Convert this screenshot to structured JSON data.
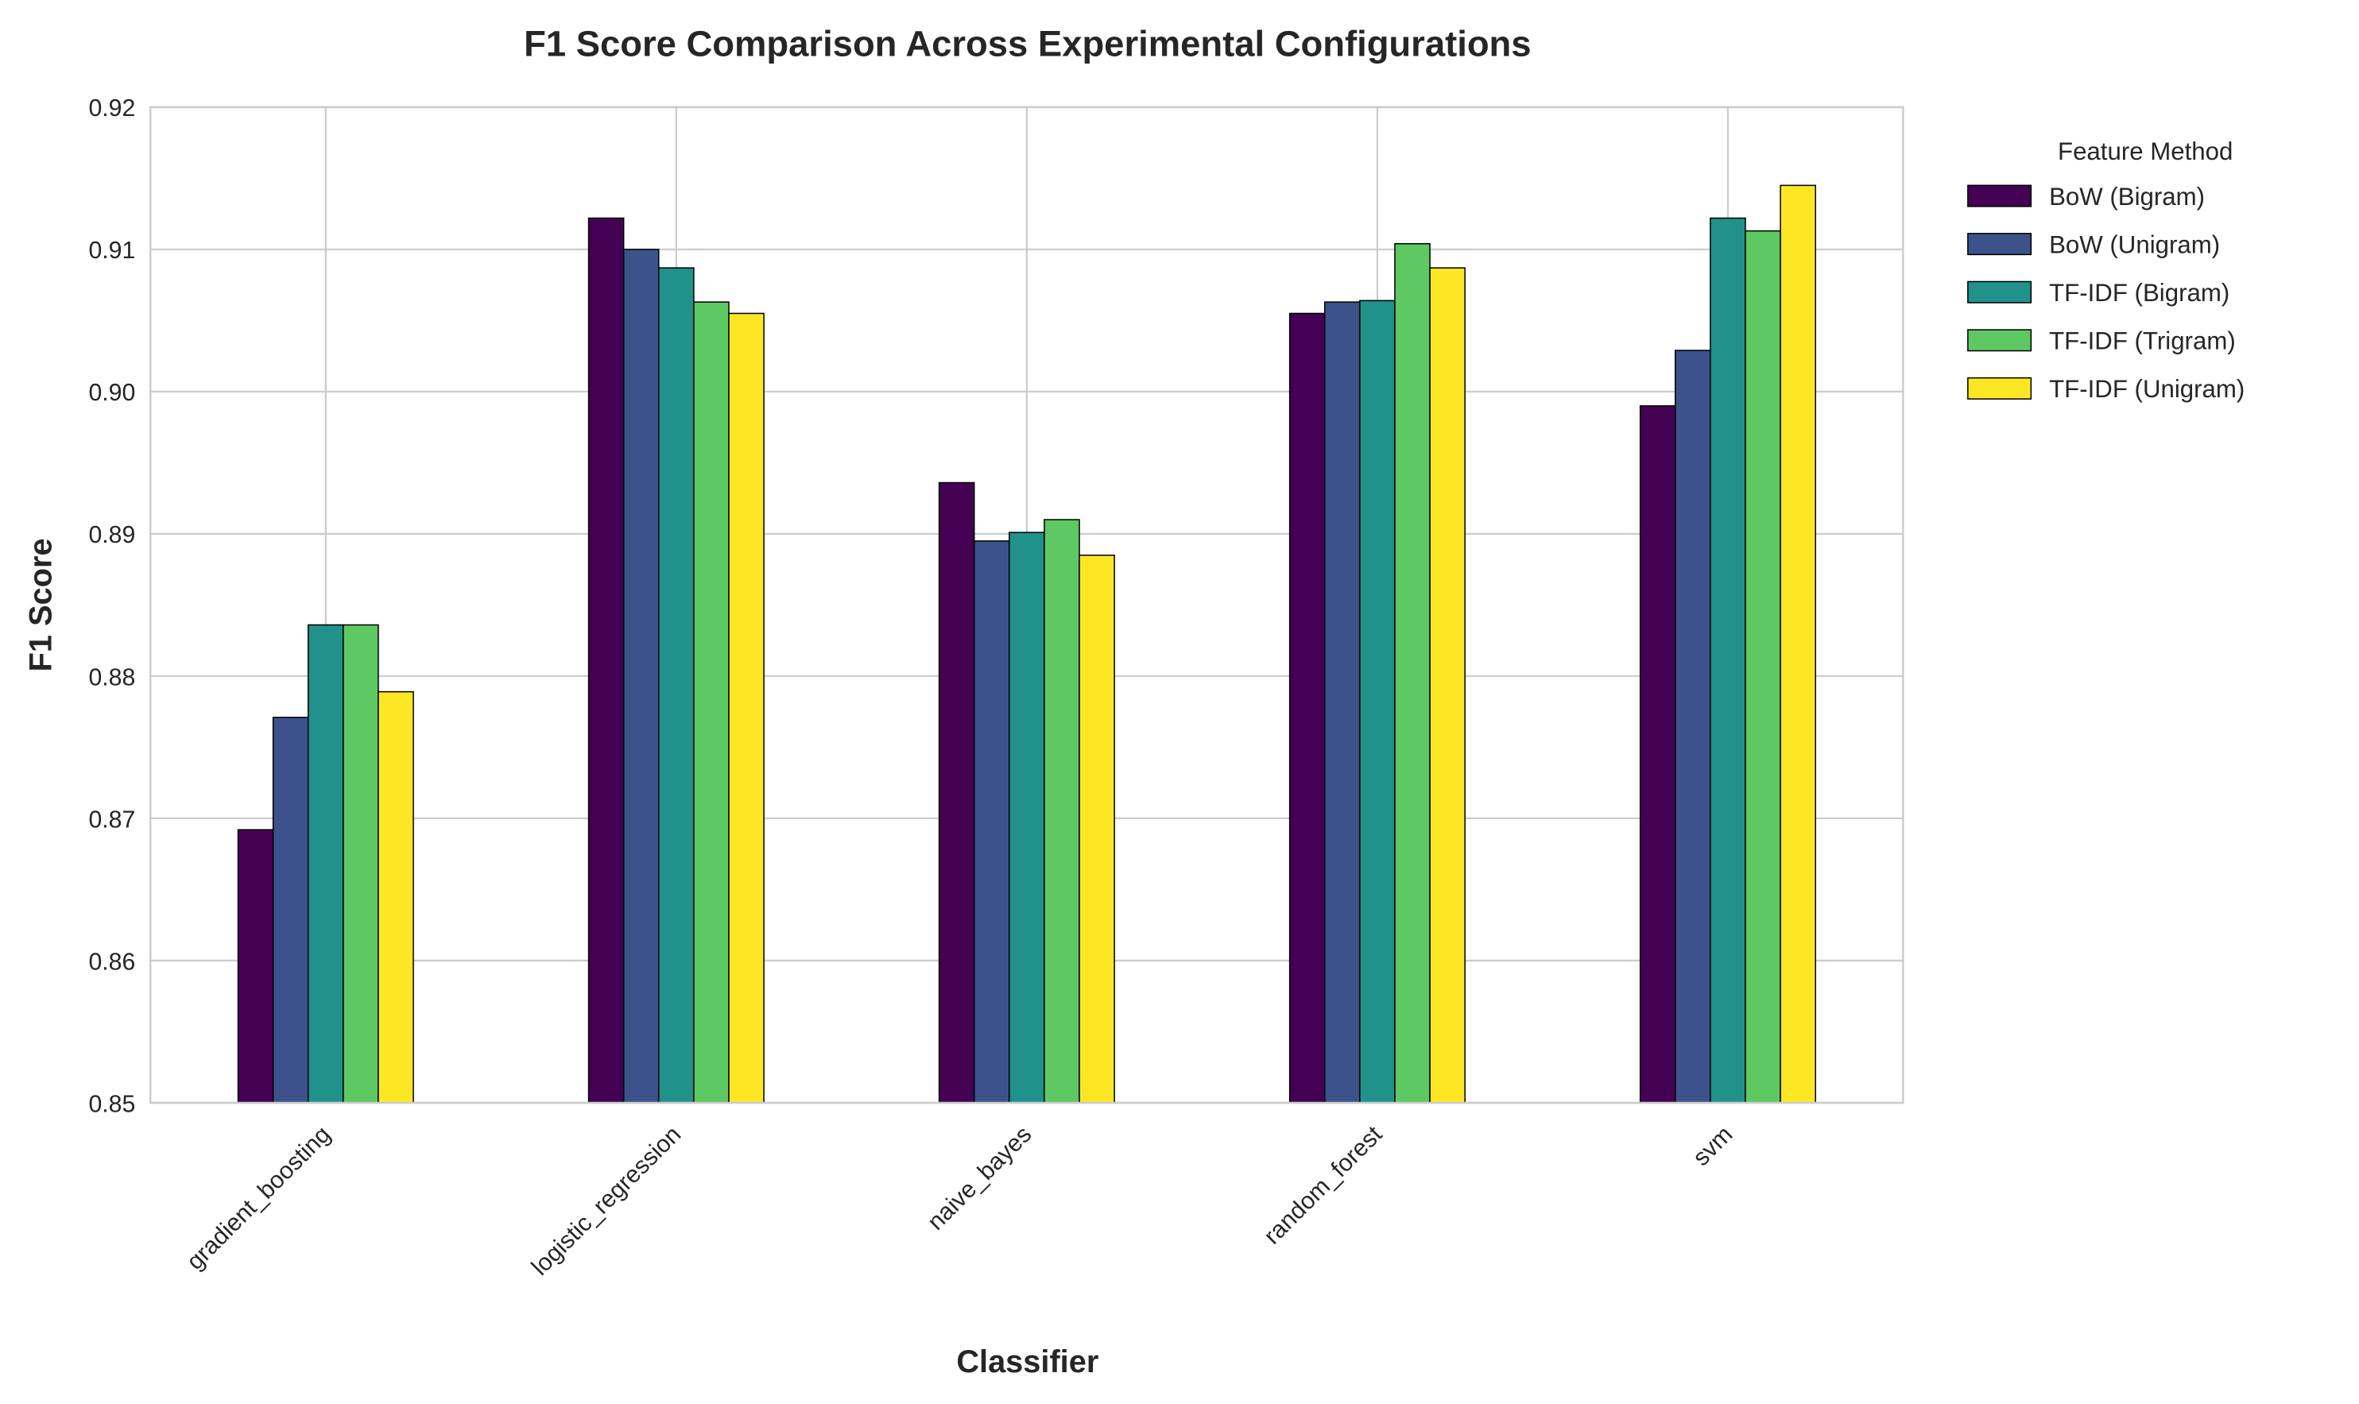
{
  "chart_data": {
    "type": "bar",
    "title": "F1 Score Comparison Across Experimental Configurations",
    "xlabel": "Classifier",
    "ylabel": "F1 Score",
    "ylim": [
      0.85,
      0.92
    ],
    "yticks": [
      "0.85",
      "0.86",
      "0.87",
      "0.88",
      "0.89",
      "0.90",
      "0.91",
      "0.92"
    ],
    "grid": true,
    "legend": {
      "title": "Feature Method",
      "placement": "outside-top-right"
    },
    "categories": [
      "gradient_boosting",
      "logistic_regression",
      "naive_bayes",
      "random_forest",
      "svm"
    ],
    "series": [
      {
        "name": "BoW (Bigram)",
        "color": "#440154",
        "values": [
          0.8692,
          0.9122,
          0.8936,
          0.9055,
          0.899
        ]
      },
      {
        "name": "BoW (Unigram)",
        "color": "#3b528b",
        "values": [
          0.8771,
          0.91,
          0.8895,
          0.9063,
          0.9029
        ]
      },
      {
        "name": "TF-IDF (Bigram)",
        "color": "#21918c",
        "values": [
          0.8836,
          0.9087,
          0.8901,
          0.9064,
          0.9122
        ]
      },
      {
        "name": "TF-IDF (Trigram)",
        "color": "#5ec962",
        "values": [
          0.8836,
          0.9063,
          0.891,
          0.9104,
          0.9113
        ]
      },
      {
        "name": "TF-IDF (Unigram)",
        "color": "#fde725",
        "values": [
          0.8789,
          0.9055,
          0.8885,
          0.9087,
          0.9145
        ]
      }
    ]
  }
}
